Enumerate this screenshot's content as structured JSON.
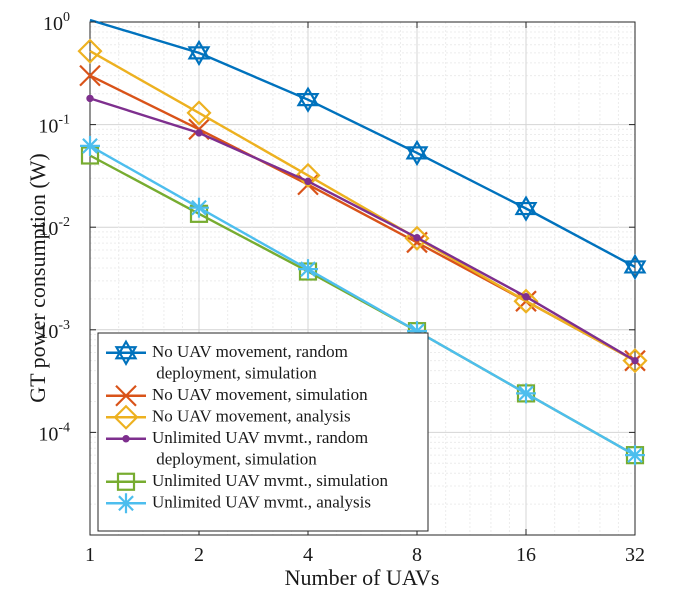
{
  "chart_data": {
    "type": "line",
    "title": "",
    "xlabel": "Number of UAVs",
    "ylabel": "GT power consumption (W)",
    "xscale": "log2",
    "yscale": "log10",
    "xlim": [
      1,
      32
    ],
    "ylim": [
      1e-05,
      1
    ],
    "x": [
      1,
      2,
      4,
      8,
      16,
      32
    ],
    "xticklabels": [
      "1",
      "2",
      "4",
      "8",
      "16",
      "32"
    ],
    "yticks": [
      {
        "value": 1,
        "base": "10",
        "exp": "0"
      },
      {
        "value": 0.1,
        "base": "10",
        "exp": "-1"
      },
      {
        "value": 0.01,
        "base": "10",
        "exp": "-2"
      },
      {
        "value": 0.001,
        "base": "10",
        "exp": "-3"
      },
      {
        "value": 0.0001,
        "base": "10",
        "exp": "-4"
      }
    ],
    "grid": true,
    "legend_position": "bottom-left",
    "series": [
      {
        "name": "No UAV movement, random deployment, simulation",
        "legend_lines": [
          "No UAV movement, random",
          " deployment, simulation"
        ],
        "color": "#0072BD",
        "marker": "hexagram",
        "values": [
          1.05,
          0.5,
          0.175,
          0.053,
          0.0152,
          0.0041
        ]
      },
      {
        "name": "No UAV movement, simulation",
        "legend_lines": [
          "No UAV movement, simulation"
        ],
        "color": "#D95319",
        "marker": "x",
        "values": [
          0.3,
          0.09,
          0.026,
          0.0071,
          0.0019,
          0.0005
        ]
      },
      {
        "name": "No UAV movement, analysis",
        "legend_lines": [
          "No UAV movement, analysis"
        ],
        "color": "#EDB120",
        "marker": "diamond",
        "values": [
          0.52,
          0.13,
          0.032,
          0.0078,
          0.0019,
          0.0005
        ]
      },
      {
        "name": "Unlimited UAV mvmt., random deployment, simulation",
        "legend_lines": [
          "Unlimited UAV mvmt., random",
          " deployment, simulation"
        ],
        "color": "#7E2F8E",
        "marker": "dot",
        "values": [
          0.18,
          0.083,
          0.028,
          0.0079,
          0.0021,
          0.0005
        ]
      },
      {
        "name": "Unlimited UAV mvmt., simulation",
        "legend_lines": [
          "Unlimited UAV mvmt., simulation"
        ],
        "color": "#77AC30",
        "marker": "square",
        "values": [
          0.05,
          0.0135,
          0.0037,
          0.00097,
          0.00024,
          6e-05
        ]
      },
      {
        "name": "Unlimited UAV mvmt., analysis",
        "legend_lines": [
          "Unlimited UAV mvmt., analysis"
        ],
        "color": "#4DBEEE",
        "marker": "asterisk",
        "values": [
          0.062,
          0.0155,
          0.0039,
          0.00097,
          0.00024,
          6e-05
        ]
      }
    ]
  }
}
